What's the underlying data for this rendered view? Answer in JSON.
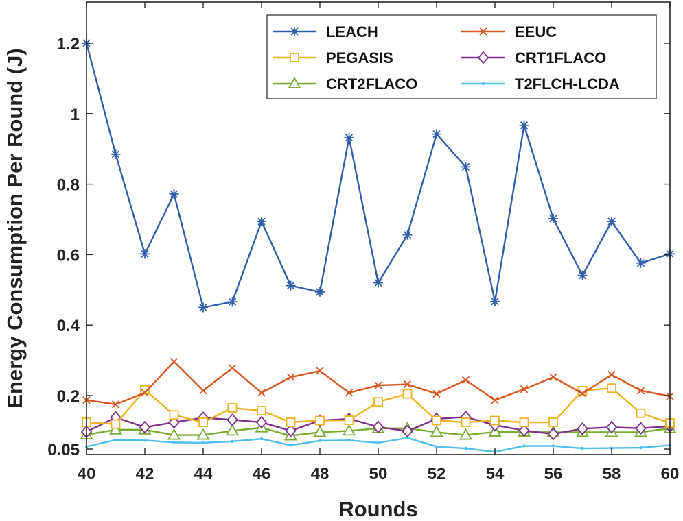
{
  "chart_data": {
    "type": "line",
    "title": "",
    "xlabel": "Rounds",
    "ylabel": "Energy Consumption Per Round (J)",
    "xlim": [
      40,
      60
    ],
    "ylim": [
      0.03,
      1.33
    ],
    "x_ticks": [
      40,
      42,
      44,
      46,
      48,
      50,
      52,
      54,
      56,
      58,
      60
    ],
    "y_ticks": [
      0.05,
      0.2,
      0.4,
      0.6,
      0.8,
      1.0,
      1.2
    ],
    "y_tick_labels": [
      "0.05",
      "0.2",
      "0.4",
      "0.6",
      "0.8",
      "1",
      "1.2"
    ],
    "grid": false,
    "legend_position": "top-right",
    "x": [
      40,
      41,
      42,
      43,
      44,
      45,
      46,
      47,
      48,
      49,
      50,
      51,
      52,
      53,
      54,
      55,
      56,
      57,
      58,
      59,
      60
    ],
    "series": [
      {
        "name": "LEACH",
        "color": "#2f5dab",
        "marker": "asterisk",
        "values": [
          1.2,
          0.885,
          0.602,
          0.772,
          0.45,
          0.466,
          0.694,
          0.512,
          0.494,
          0.932,
          0.52,
          0.656,
          0.942,
          0.849,
          0.467,
          0.967,
          0.702,
          0.541,
          0.694,
          0.576,
          0.602
        ]
      },
      {
        "name": "EEUC",
        "color": "#d9541e",
        "marker": "x",
        "values": [
          0.187,
          0.175,
          0.208,
          0.296,
          0.214,
          0.278,
          0.208,
          0.252,
          0.27,
          0.208,
          0.229,
          0.232,
          0.205,
          0.244,
          0.187,
          0.218,
          0.252,
          0.206,
          0.259,
          0.214,
          0.198
        ]
      },
      {
        "name": "PEGASIS",
        "color": "#edb120",
        "marker": "square",
        "values": [
          0.124,
          0.119,
          0.216,
          0.145,
          0.124,
          0.165,
          0.157,
          0.124,
          0.129,
          0.13,
          0.182,
          0.205,
          0.129,
          0.124,
          0.129,
          0.124,
          0.124,
          0.214,
          0.221,
          0.15,
          0.122
        ]
      },
      {
        "name": "CRT1FLACO",
        "color": "#7e2f8e",
        "marker": "diamond",
        "values": [
          0.097,
          0.138,
          0.11,
          0.124,
          0.137,
          0.131,
          0.124,
          0.1,
          0.129,
          0.134,
          0.111,
          0.099,
          0.134,
          0.139,
          0.116,
          0.101,
          0.091,
          0.106,
          0.11,
          0.107,
          0.113
        ]
      },
      {
        "name": "CRT2FLACO",
        "color": "#77ac30",
        "marker": "triangle",
        "values": [
          0.089,
          0.103,
          0.103,
          0.088,
          0.088,
          0.1,
          0.109,
          0.086,
          0.096,
          0.1,
          0.107,
          0.107,
          0.096,
          0.088,
          0.097,
          0.097,
          0.096,
          0.096,
          0.096,
          0.096,
          0.107
        ]
      },
      {
        "name": "T2FLCH-LCDA",
        "color": "#4dbeee",
        "marker": "dot",
        "values": [
          0.055,
          0.074,
          0.073,
          0.067,
          0.066,
          0.07,
          0.077,
          0.059,
          0.072,
          0.073,
          0.066,
          0.08,
          0.055,
          0.05,
          0.04,
          0.057,
          0.057,
          0.05,
          0.051,
          0.052,
          0.059
        ]
      }
    ]
  }
}
